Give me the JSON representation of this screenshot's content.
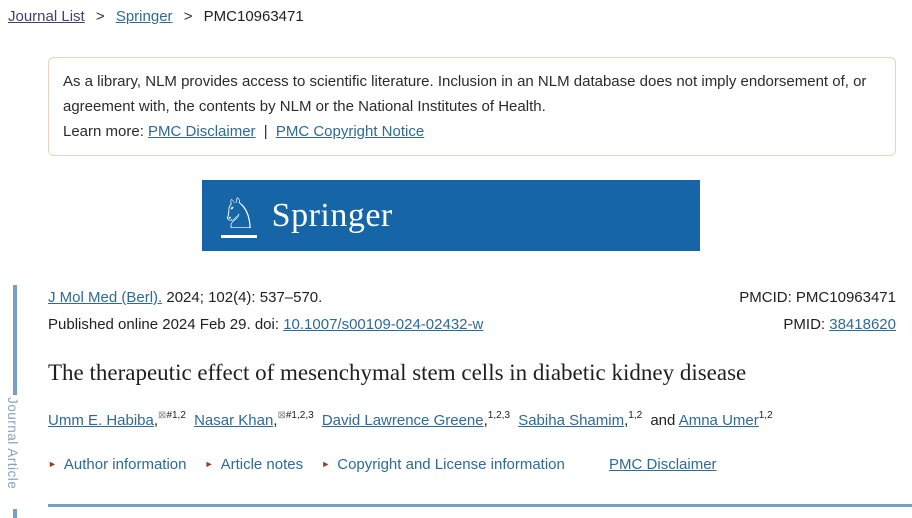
{
  "breadcrumb": {
    "separator": ">",
    "items": [
      {
        "label": "Journal List"
      },
      {
        "label": "Springer"
      },
      {
        "label": "PMC10963471"
      }
    ]
  },
  "disclaimer": {
    "text": "As a library, NLM provides access to scientific literature. Inclusion in an NLM database does not imply endorsement of, or agreement with, the contents by NLM or the National Institutes of Health.",
    "learn_more_label": "Learn more: ",
    "link_disclaimer": "PMC Disclaimer",
    "separator": "|",
    "link_copyright": "PMC Copyright Notice"
  },
  "banner": {
    "publisher": "Springer",
    "logo_icon": "springer-knight-horse",
    "knight_glyph": "♘",
    "bg_color": "#1565a7"
  },
  "citation": {
    "journal_link": "J Mol Med (Berl).",
    "citation_rest": "2024; 102(4): 537–570.",
    "published_prefix": "Published online 2024 Feb 29. doi: ",
    "doi_link": "10.1007/s00109-024-02432-w",
    "pmcid_label": "PMCID: ",
    "pmcid_value": "PMC10963471",
    "pmid_label": "PMID: ",
    "pmid_value": "38418620"
  },
  "article": {
    "title": "The therapeutic effect of mesenchymal stem cells in diabetic kidney disease",
    "authors": [
      {
        "prefix": "",
        "name": "Umm E. Habiba",
        "comma": ",",
        "mark": "⊠",
        "sup": "#1,2"
      },
      {
        "prefix": "",
        "name": "Nasar Khan",
        "comma": ",",
        "mark": "⊠",
        "sup": "#1,2,3"
      },
      {
        "prefix": "",
        "name": "David Lawrence Greene",
        "comma": ",",
        "mark": "",
        "sup": "1,2,3"
      },
      {
        "prefix": "",
        "name": "Sabiha Shamim",
        "comma": ",",
        "mark": "",
        "sup": "1,2"
      },
      {
        "prefix": "and ",
        "name": "Amna Umer",
        "comma": "",
        "mark": "",
        "sup": "1,2"
      }
    ],
    "info_bullet": "►",
    "info_links": [
      {
        "label": "Author information"
      },
      {
        "label": "Article notes"
      },
      {
        "label": "Copyright and License information"
      }
    ],
    "pmc_disclaimer_link": "PMC Disclaimer"
  },
  "sidebar": {
    "label": "Journal Article"
  },
  "colors": {
    "springer_blue": "#1565a7",
    "rail_blue": "#74a0c8",
    "link_blue": "#2e6a96",
    "visited_purple": "#453f70",
    "bullet_rust": "#9e3c22",
    "disclaimer_border": "#e6d4ba"
  }
}
